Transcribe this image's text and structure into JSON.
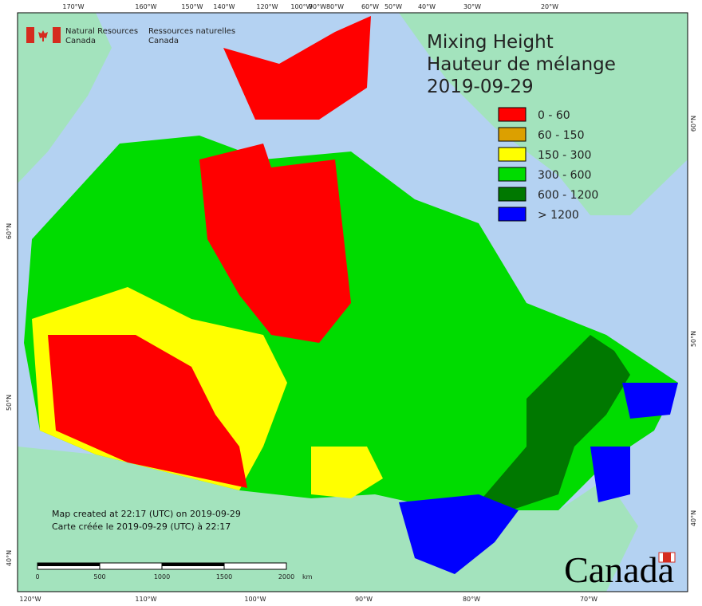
{
  "logo": {
    "en": [
      "Natural Resources",
      "Canada"
    ],
    "fr": [
      "Ressources naturelles",
      "Canada"
    ]
  },
  "title": [
    "Mixing Height",
    "Hauteur de mélange",
    "2019-09-29"
  ],
  "legend": [
    {
      "label": "0 - 60",
      "color": "#ff0000"
    },
    {
      "label": "60 - 150",
      "color": "#dca000"
    },
    {
      "label": "150 - 300",
      "color": "#ffff00"
    },
    {
      "label": "300 - 600",
      "color": "#00dc00"
    },
    {
      "label": "600 - 1200",
      "color": "#007800"
    },
    {
      "label": "> 1200",
      "color": "#0000ff"
    }
  ],
  "graticule": {
    "top": [
      "170°W",
      "160°W",
      "150°W",
      "140°W",
      "120°W",
      "100°W",
      "90°W",
      "80°W",
      "60°W",
      "50°W",
      "40°W",
      "30°W",
      "20°W"
    ],
    "bottom": [
      "120°W",
      "110°W",
      "100°W",
      "90°W",
      "80°W",
      "70°W"
    ],
    "left": [
      "60°N",
      "50°N",
      "40°N"
    ],
    "right": [
      "60°N",
      "50°N",
      "40°N"
    ]
  },
  "notes": [
    "Map created at 22:17 (UTC) on 2019-09-29",
    "Carte créée le 2019-09-29 (UTC) à 22:17"
  ],
  "scale": {
    "ticks": [
      0,
      500,
      1000,
      1500,
      2000
    ],
    "unit": "km"
  },
  "wordmark": "Canada"
}
